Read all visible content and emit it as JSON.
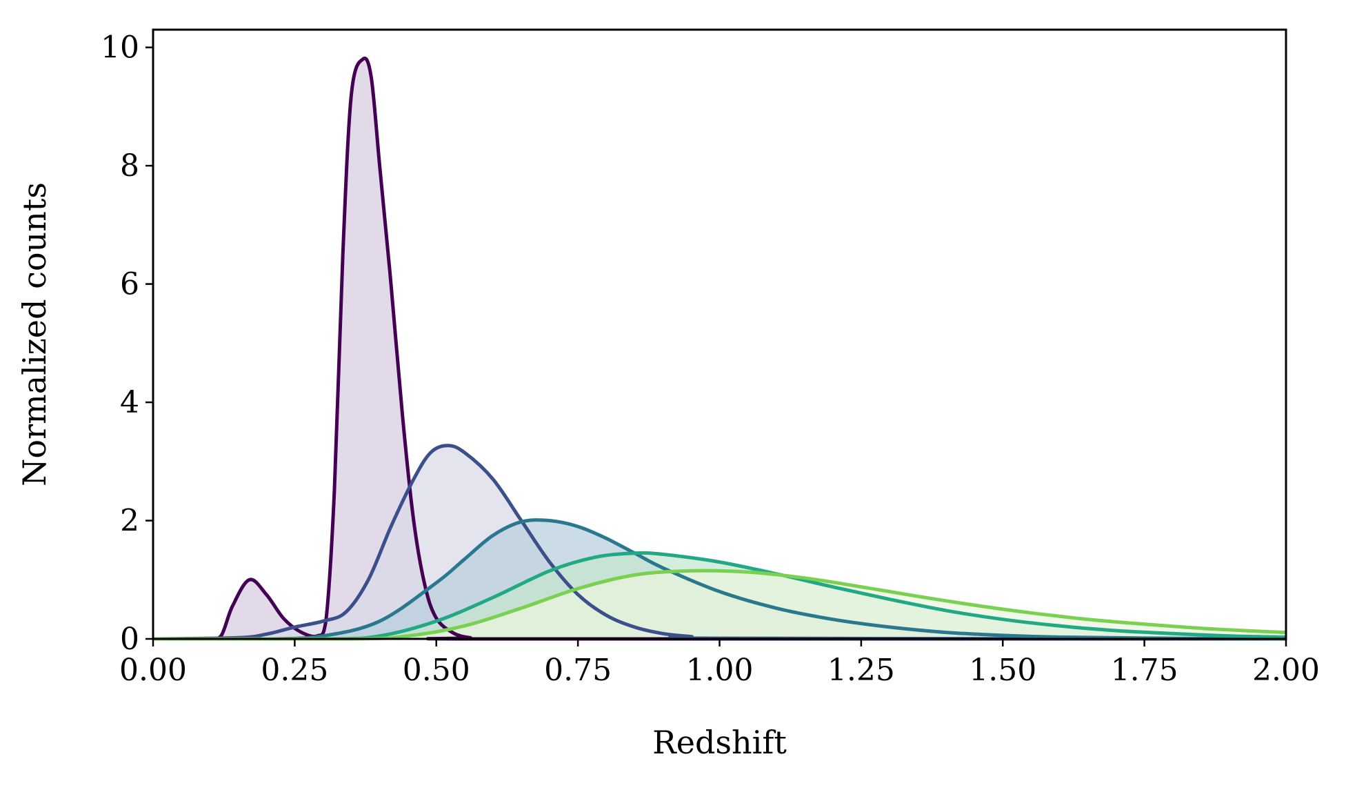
{
  "chart_data": {
    "type": "area",
    "xlabel": "Redshift",
    "ylabel": "Normalized counts",
    "xlim": [
      0,
      2
    ],
    "ylim": [
      0,
      10.3
    ],
    "xticks": [
      0,
      0.25,
      0.5,
      0.75,
      1.0,
      1.25,
      1.5,
      1.75,
      2.0
    ],
    "xtick_labels": [
      "0.00",
      "0.25",
      "0.50",
      "0.75",
      "1.00",
      "1.25",
      "1.50",
      "1.75",
      "2.00"
    ],
    "yticks": [
      0,
      2,
      4,
      6,
      8,
      10
    ],
    "ytick_labels": [
      "0",
      "2",
      "4",
      "6",
      "8",
      "10"
    ],
    "grid": false,
    "legend": false,
    "series": [
      {
        "color": "#440154",
        "fill": "#d8cce0",
        "points": [
          [
            0,
            0
          ],
          [
            0.1,
            0
          ],
          [
            0.12,
            0.05
          ],
          [
            0.14,
            0.55
          ],
          [
            0.17,
            1.0
          ],
          [
            0.2,
            0.75
          ],
          [
            0.23,
            0.35
          ],
          [
            0.26,
            0.12
          ],
          [
            0.29,
            0.05
          ],
          [
            0.305,
            0.3
          ],
          [
            0.32,
            2.5
          ],
          [
            0.335,
            6.5
          ],
          [
            0.35,
            9.2
          ],
          [
            0.37,
            9.8
          ],
          [
            0.385,
            9.5
          ],
          [
            0.4,
            8.0
          ],
          [
            0.42,
            6.0
          ],
          [
            0.44,
            3.8
          ],
          [
            0.46,
            2.0
          ],
          [
            0.48,
            0.9
          ],
          [
            0.5,
            0.35
          ],
          [
            0.53,
            0.1
          ],
          [
            0.56,
            0.02
          ],
          [
            0.6,
            0
          ],
          [
            2.0,
            0
          ]
        ]
      },
      {
        "color": "#3b4f8a",
        "fill": "#d9dae8",
        "points": [
          [
            0,
            0
          ],
          [
            0.15,
            0.02
          ],
          [
            0.2,
            0.08
          ],
          [
            0.25,
            0.2
          ],
          [
            0.3,
            0.3
          ],
          [
            0.34,
            0.45
          ],
          [
            0.38,
            1.0
          ],
          [
            0.42,
            1.9
          ],
          [
            0.46,
            2.7
          ],
          [
            0.49,
            3.15
          ],
          [
            0.52,
            3.27
          ],
          [
            0.55,
            3.15
          ],
          [
            0.6,
            2.7
          ],
          [
            0.65,
            2.0
          ],
          [
            0.7,
            1.3
          ],
          [
            0.75,
            0.75
          ],
          [
            0.8,
            0.4
          ],
          [
            0.85,
            0.2
          ],
          [
            0.9,
            0.09
          ],
          [
            0.95,
            0.04
          ],
          [
            1.0,
            0.01
          ],
          [
            2.0,
            0
          ]
        ]
      },
      {
        "color": "#2a788e",
        "fill": "#b9cfdc",
        "points": [
          [
            0,
            0
          ],
          [
            0.2,
            0
          ],
          [
            0.3,
            0.05
          ],
          [
            0.4,
            0.3
          ],
          [
            0.5,
            0.95
          ],
          [
            0.55,
            1.35
          ],
          [
            0.6,
            1.75
          ],
          [
            0.65,
            1.98
          ],
          [
            0.7,
            2.0
          ],
          [
            0.75,
            1.9
          ],
          [
            0.8,
            1.7
          ],
          [
            0.85,
            1.45
          ],
          [
            0.9,
            1.2
          ],
          [
            1.0,
            0.8
          ],
          [
            1.1,
            0.52
          ],
          [
            1.2,
            0.33
          ],
          [
            1.3,
            0.2
          ],
          [
            1.4,
            0.11
          ],
          [
            1.5,
            0.06
          ],
          [
            1.6,
            0.03
          ],
          [
            1.8,
            0.01
          ],
          [
            2.0,
            0
          ]
        ]
      },
      {
        "color": "#22a884",
        "fill": "#c4e6cf",
        "points": [
          [
            0,
            0
          ],
          [
            0.3,
            0
          ],
          [
            0.4,
            0.05
          ],
          [
            0.5,
            0.3
          ],
          [
            0.6,
            0.7
          ],
          [
            0.7,
            1.15
          ],
          [
            0.78,
            1.38
          ],
          [
            0.85,
            1.45
          ],
          [
            0.9,
            1.43
          ],
          [
            1.0,
            1.3
          ],
          [
            1.1,
            1.1
          ],
          [
            1.2,
            0.88
          ],
          [
            1.3,
            0.67
          ],
          [
            1.4,
            0.48
          ],
          [
            1.5,
            0.33
          ],
          [
            1.6,
            0.22
          ],
          [
            1.7,
            0.14
          ],
          [
            1.8,
            0.09
          ],
          [
            1.9,
            0.05
          ],
          [
            2.0,
            0.03
          ]
        ]
      },
      {
        "color": "#7ad151",
        "fill": "#eaf5de",
        "points": [
          [
            0,
            0
          ],
          [
            0.35,
            0
          ],
          [
            0.45,
            0.05
          ],
          [
            0.55,
            0.22
          ],
          [
            0.65,
            0.52
          ],
          [
            0.75,
            0.85
          ],
          [
            0.85,
            1.08
          ],
          [
            0.95,
            1.15
          ],
          [
            1.05,
            1.13
          ],
          [
            1.15,
            1.03
          ],
          [
            1.25,
            0.88
          ],
          [
            1.35,
            0.72
          ],
          [
            1.45,
            0.57
          ],
          [
            1.55,
            0.44
          ],
          [
            1.65,
            0.33
          ],
          [
            1.75,
            0.25
          ],
          [
            1.85,
            0.18
          ],
          [
            1.95,
            0.13
          ],
          [
            2.0,
            0.11
          ]
        ]
      }
    ]
  }
}
